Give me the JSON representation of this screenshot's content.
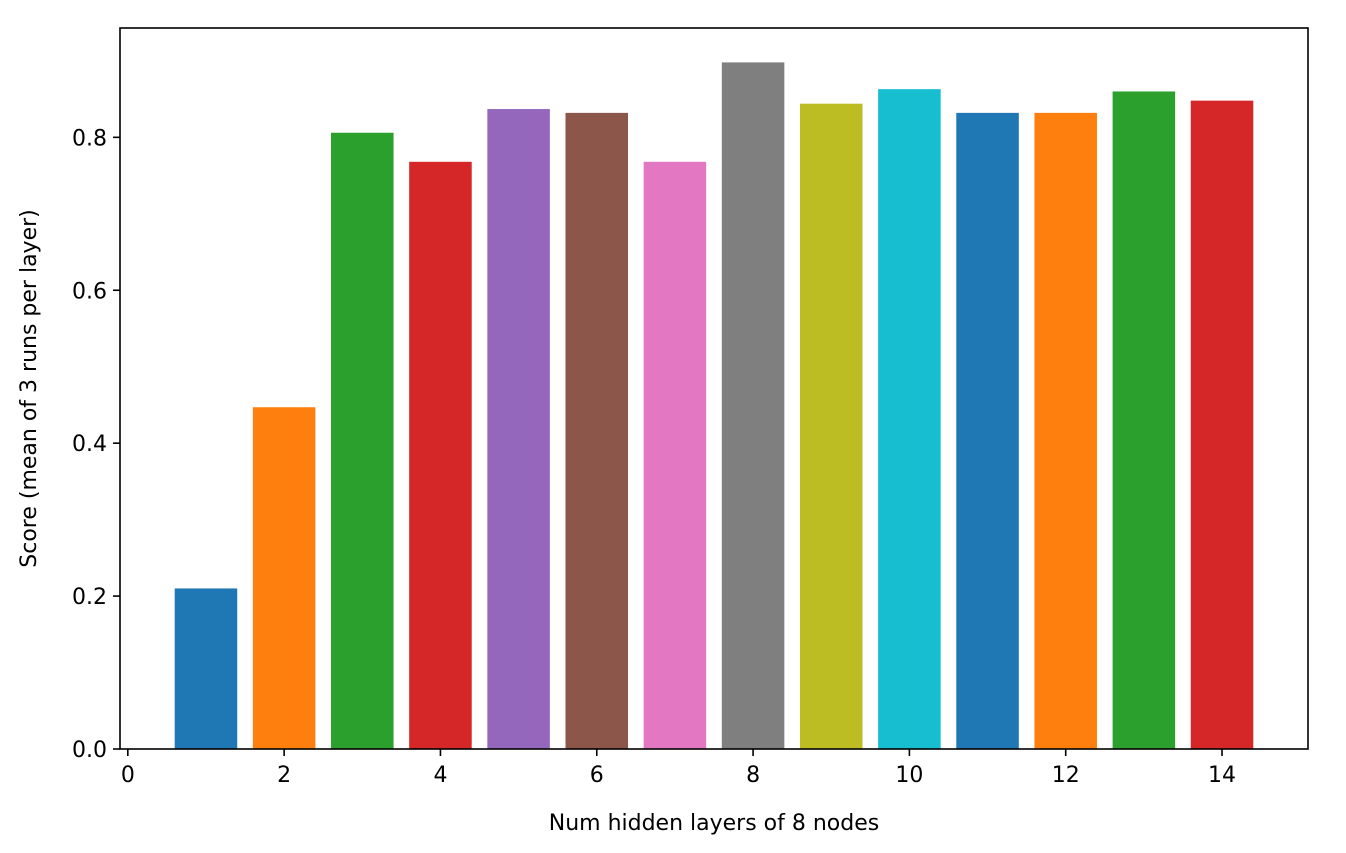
{
  "chart_data": {
    "type": "bar",
    "title": "",
    "xlabel": "Num hidden layers of 8 nodes",
    "ylabel": "Score (mean of 3 runs per layer)",
    "x": [
      1,
      2,
      3,
      4,
      5,
      6,
      7,
      8,
      9,
      10,
      11,
      12,
      13,
      14
    ],
    "values": [
      0.21,
      0.447,
      0.806,
      0.768,
      0.837,
      0.832,
      0.768,
      0.898,
      0.844,
      0.863,
      0.832,
      0.832,
      0.86,
      0.848
    ],
    "colors": [
      "#1f77b4",
      "#ff7f0e",
      "#2ca02c",
      "#d62728",
      "#9467bd",
      "#8c564b",
      "#e377c2",
      "#7f7f7f",
      "#bcbd22",
      "#17becf",
      "#1f77b4",
      "#ff7f0e",
      "#2ca02c",
      "#d62728"
    ],
    "bar_width": 0.8,
    "xlim": [
      -0.1,
      15.1
    ],
    "ylim": [
      0,
      0.943
    ],
    "xticks": [
      0,
      2,
      4,
      6,
      8,
      10,
      12,
      14
    ],
    "xtick_labels": [
      "0",
      "2",
      "4",
      "6",
      "8",
      "10",
      "12",
      "14"
    ],
    "yticks": [
      0.0,
      0.2,
      0.4,
      0.6,
      0.8
    ],
    "ytick_labels": [
      "0.0",
      "0.2",
      "0.4",
      "0.6",
      "0.8"
    ],
    "grid": false,
    "legend": "none"
  }
}
